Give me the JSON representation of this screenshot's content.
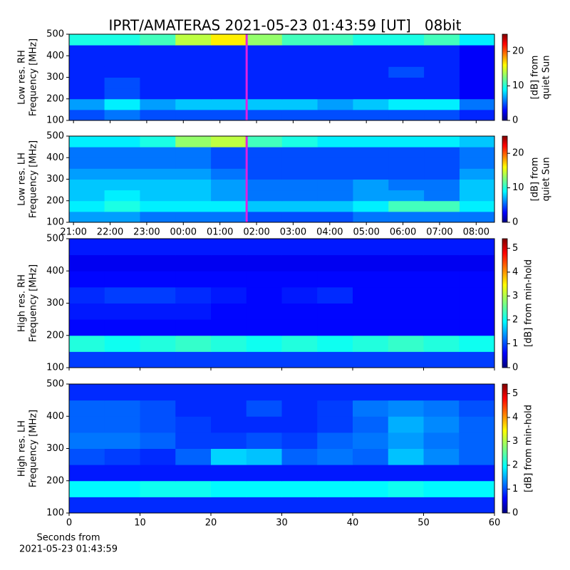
{
  "chart_data": [
    {
      "type": "heatmap",
      "title": "IPRT/AMATERAS 2021-05-23 01:43:59 [UT]   08bit",
      "ylabel": [
        "Low res. RH",
        "Frequency [MHz]"
      ],
      "colorbar_label": [
        "[dB] from",
        "quiet Sun"
      ],
      "x": [
        21.36,
        22.33,
        23.3,
        24.27,
        25.24,
        26.21,
        27.18,
        28.15,
        29.12,
        30.09,
        31.06,
        32.03
      ],
      "y": [
        125,
        175,
        225,
        275,
        325,
        375,
        425,
        475
      ],
      "z": [
        [
          5,
          6,
          5,
          5,
          5,
          5,
          5,
          5,
          5,
          5,
          5,
          4
        ],
        [
          7,
          9,
          7,
          8,
          8,
          8,
          8,
          7,
          8,
          9,
          9,
          6
        ],
        [
          4,
          5,
          4,
          4,
          4,
          4,
          4,
          4,
          4,
          4,
          4,
          3
        ],
        [
          4,
          5,
          4,
          4,
          4,
          4,
          4,
          4,
          4,
          4,
          4,
          3
        ],
        [
          4,
          4,
          4,
          4,
          4,
          4,
          4,
          4,
          4,
          5,
          4,
          3
        ],
        [
          4,
          4,
          4,
          4,
          4,
          4,
          4,
          4,
          4,
          4,
          4,
          3
        ],
        [
          4,
          4,
          4,
          4,
          4,
          4,
          4,
          4,
          4,
          4,
          4,
          3
        ],
        [
          10,
          10,
          11,
          14,
          16,
          13,
          11,
          11,
          10,
          10,
          11,
          9
        ]
      ],
      "xlim": [
        20.88,
        32.5
      ],
      "ylim": [
        100,
        500
      ],
      "clim": [
        0,
        25
      ],
      "xticks": [
        {
          "value": 21,
          "label": "21:00"
        },
        {
          "value": 22,
          "label": "22:00"
        },
        {
          "value": 23,
          "label": "23:00"
        },
        {
          "value": 24,
          "label": "00:00"
        },
        {
          "value": 25,
          "label": "01:00"
        },
        {
          "value": 26,
          "label": "02:00"
        },
        {
          "value": 27,
          "label": "03:00"
        },
        {
          "value": 28,
          "label": "04:00"
        },
        {
          "value": 29,
          "label": "05:00"
        },
        {
          "value": 30,
          "label": "06:00"
        },
        {
          "value": 31,
          "label": "07:00"
        },
        {
          "value": 32,
          "label": "08:00"
        }
      ],
      "xticklabels": false,
      "yticks": [
        100,
        200,
        300,
        400,
        500
      ],
      "cticks": [
        0,
        10,
        20
      ],
      "vline": 25.73,
      "vline_color": "#e020e0"
    },
    {
      "type": "heatmap",
      "ylabel": [
        "Low res. LH",
        "Frequency [MHz]"
      ],
      "colorbar_label": [
        "[dB] from",
        "quiet Sun"
      ],
      "x": [
        21.36,
        22.33,
        23.3,
        24.27,
        25.24,
        26.21,
        27.18,
        28.15,
        29.12,
        30.09,
        31.06,
        32.03
      ],
      "y": [
        125,
        175,
        225,
        275,
        325,
        375,
        425,
        475
      ],
      "z": [
        [
          7,
          7,
          6,
          6,
          6,
          5,
          5,
          5,
          6,
          6,
          6,
          6
        ],
        [
          9,
          10,
          9,
          9,
          9,
          8,
          8,
          8,
          9,
          11,
          11,
          9
        ],
        [
          8,
          9,
          8,
          8,
          7,
          6,
          6,
          6,
          7,
          7,
          6,
          8
        ],
        [
          8,
          8,
          8,
          8,
          7,
          6,
          6,
          6,
          7,
          6,
          6,
          8
        ],
        [
          7,
          7,
          7,
          7,
          6,
          5,
          5,
          5,
          5,
          5,
          5,
          7
        ],
        [
          6,
          6,
          6,
          6,
          5,
          5,
          5,
          5,
          5,
          5,
          5,
          6
        ],
        [
          6,
          6,
          6,
          6,
          5,
          5,
          5,
          5,
          5,
          5,
          5,
          6
        ],
        [
          9,
          9,
          10,
          13,
          14,
          11,
          10,
          9,
          9,
          9,
          9,
          8
        ]
      ],
      "xlim": [
        20.88,
        32.5
      ],
      "ylim": [
        100,
        500
      ],
      "clim": [
        0,
        25
      ],
      "xticks": [
        {
          "value": 21,
          "label": "21:00"
        },
        {
          "value": 22,
          "label": "22:00"
        },
        {
          "value": 23,
          "label": "23:00"
        },
        {
          "value": 24,
          "label": "00:00"
        },
        {
          "value": 25,
          "label": "01:00"
        },
        {
          "value": 26,
          "label": "02:00"
        },
        {
          "value": 27,
          "label": "03:00"
        },
        {
          "value": 28,
          "label": "04:00"
        },
        {
          "value": 29,
          "label": "05:00"
        },
        {
          "value": 30,
          "label": "06:00"
        },
        {
          "value": 31,
          "label": "07:00"
        },
        {
          "value": 32,
          "label": "08:00"
        }
      ],
      "xticklabels": true,
      "yticks": [
        100,
        200,
        300,
        400,
        500
      ],
      "cticks": [
        0,
        10,
        20
      ],
      "vline": 25.73,
      "vline_color": "#e020e0"
    },
    {
      "type": "heatmap",
      "ylabel": [
        "High res. RH",
        "Frequency [MHz]"
      ],
      "colorbar_label": [
        "[dB] from min-hold"
      ],
      "x": [
        2.5,
        7.5,
        12.5,
        17.5,
        22.5,
        27.5,
        32.5,
        37.5,
        42.5,
        47.5,
        52.5,
        57.5
      ],
      "y": [
        125,
        175,
        225,
        275,
        325,
        375,
        425,
        475
      ],
      "z": [
        [
          1.0,
          1.0,
          1.0,
          1.0,
          1.0,
          1.0,
          1.0,
          1.0,
          1.0,
          1.0,
          1.0,
          1.0
        ],
        [
          2.2,
          2.1,
          2.2,
          2.3,
          2.2,
          2.1,
          2.2,
          2.1,
          2.2,
          2.3,
          2.2,
          2.1
        ],
        [
          0.7,
          0.7,
          0.7,
          0.7,
          0.7,
          0.7,
          0.7,
          0.7,
          0.7,
          0.7,
          0.7,
          0.7
        ],
        [
          0.8,
          0.8,
          0.8,
          0.8,
          0.7,
          0.7,
          0.7,
          0.7,
          0.7,
          0.7,
          0.7,
          0.7
        ],
        [
          0.9,
          1.0,
          1.0,
          0.9,
          0.8,
          0.7,
          0.8,
          0.9,
          0.7,
          0.7,
          0.7,
          0.7
        ],
        [
          0.7,
          0.7,
          0.7,
          0.7,
          0.7,
          0.7,
          0.7,
          0.7,
          0.7,
          0.7,
          0.7,
          0.7
        ],
        [
          0.6,
          0.6,
          0.6,
          0.6,
          0.6,
          0.6,
          0.6,
          0.6,
          0.6,
          0.6,
          0.6,
          0.6
        ],
        [
          0.8,
          0.8,
          0.8,
          0.8,
          0.8,
          0.8,
          0.8,
          0.8,
          0.8,
          0.8,
          0.8,
          0.8
        ]
      ],
      "xlim": [
        0,
        60
      ],
      "ylim": [
        100,
        500
      ],
      "clim": [
        0,
        5.4
      ],
      "xticks": [
        0,
        10,
        20,
        30,
        40,
        50,
        60
      ],
      "xticklabels": false,
      "yticks": [
        100,
        200,
        300,
        400,
        500
      ],
      "cticks": [
        0,
        1,
        2,
        3,
        4,
        5
      ]
    },
    {
      "type": "heatmap",
      "ylabel": [
        "High res. LH",
        "Frequency [MHz]"
      ],
      "colorbar_label": [
        "[dB] from min-hold"
      ],
      "xlabel": [
        "Seconds from",
        "2021-05-23 01:43:59"
      ],
      "x": [
        2.5,
        7.5,
        12.5,
        17.5,
        22.5,
        27.5,
        32.5,
        37.5,
        42.5,
        47.5,
        52.5,
        57.5
      ],
      "y": [
        125,
        175,
        225,
        275,
        325,
        375,
        425,
        475
      ],
      "z": [
        [
          0.9,
          0.9,
          0.9,
          0.9,
          0.9,
          0.9,
          0.9,
          0.9,
          0.9,
          0.9,
          0.9,
          0.9
        ],
        [
          2.0,
          2.0,
          2.1,
          2.1,
          2.0,
          2.0,
          2.0,
          2.0,
          2.0,
          2.1,
          2.0,
          2.0
        ],
        [
          0.8,
          0.8,
          0.8,
          0.8,
          0.8,
          0.8,
          0.8,
          0.8,
          0.8,
          0.8,
          0.8,
          0.8
        ],
        [
          1.1,
          1.0,
          0.9,
          1.2,
          1.8,
          1.7,
          1.2,
          1.3,
          1.2,
          1.7,
          1.4,
          1.2
        ],
        [
          1.3,
          1.3,
          1.2,
          1.0,
          1.0,
          1.1,
          1.0,
          1.2,
          1.3,
          1.5,
          1.3,
          1.2
        ],
        [
          1.2,
          1.2,
          1.1,
          1.0,
          0.9,
          0.9,
          0.9,
          1.0,
          1.2,
          1.6,
          1.4,
          1.2
        ],
        [
          1.2,
          1.2,
          1.1,
          0.9,
          0.9,
          1.1,
          0.9,
          1.0,
          1.3,
          1.4,
          1.3,
          1.1
        ],
        [
          0.9,
          0.9,
          0.9,
          0.9,
          0.9,
          0.9,
          0.9,
          0.9,
          0.9,
          0.9,
          0.9,
          0.9
        ]
      ],
      "xlim": [
        0,
        60
      ],
      "ylim": [
        100,
        500
      ],
      "clim": [
        0,
        5.4
      ],
      "xticks": [
        0,
        10,
        20,
        30,
        40,
        50,
        60
      ],
      "xticklabels": true,
      "yticks": [
        100,
        200,
        300,
        400,
        500
      ],
      "cticks": [
        0,
        1,
        2,
        3,
        4,
        5
      ]
    }
  ]
}
